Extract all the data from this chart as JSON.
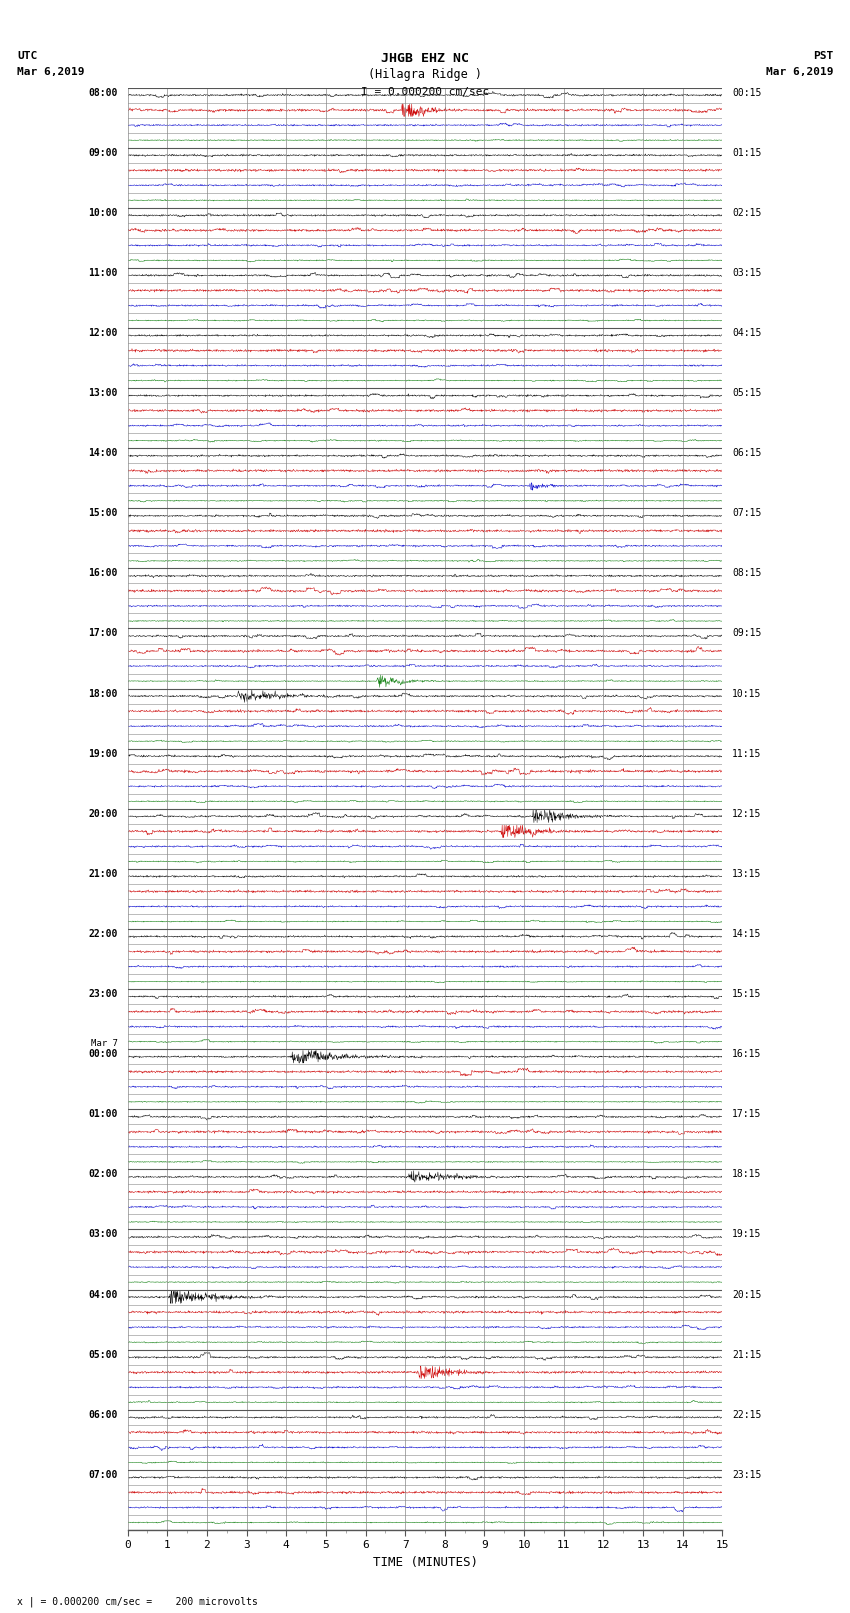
{
  "title_line1": "JHGB EHZ NC",
  "title_line2": "(Hilagra Ridge )",
  "scale_bar": "I = 0.000200 cm/sec",
  "left_label_line1": "UTC",
  "left_label_line2": "Mar 6,2019",
  "right_label_line1": "PST",
  "right_label_line2": "Mar 6,2019",
  "bottom_note": "x | = 0.000200 cm/sec =    200 microvolts",
  "xlabel": "TIME (MINUTES)",
  "x_ticks": [
    0,
    1,
    2,
    3,
    4,
    5,
    6,
    7,
    8,
    9,
    10,
    11,
    12,
    13,
    14,
    15
  ],
  "minutes_per_row": 15,
  "num_hours": 24,
  "rows_per_hour": 4,
  "background_color": "#ffffff",
  "trace_colors": [
    "#000000",
    "#cc0000",
    "#0000cc",
    "#007700"
  ],
  "grid_color": "#888888",
  "noise_amplitude_base": 0.06,
  "noise_seed": 12345,
  "utc_labels": [
    "08:00",
    "09:00",
    "10:00",
    "11:00",
    "12:00",
    "13:00",
    "14:00",
    "15:00",
    "16:00",
    "17:00",
    "18:00",
    "19:00",
    "20:00",
    "21:00",
    "22:00",
    "23:00",
    "Mar 7\n00:00",
    "01:00",
    "02:00",
    "03:00",
    "04:00",
    "05:00",
    "06:00",
    "07:00"
  ],
  "pst_labels": [
    "00:15",
    "01:15",
    "02:15",
    "03:15",
    "04:15",
    "05:15",
    "06:15",
    "07:15",
    "08:15",
    "09:15",
    "10:15",
    "11:15",
    "12:15",
    "13:15",
    "14:15",
    "15:15",
    "16:15",
    "17:15",
    "18:15",
    "19:15",
    "20:15",
    "21:15",
    "22:15",
    "23:15"
  ],
  "fig_width": 8.5,
  "fig_height": 16.13
}
